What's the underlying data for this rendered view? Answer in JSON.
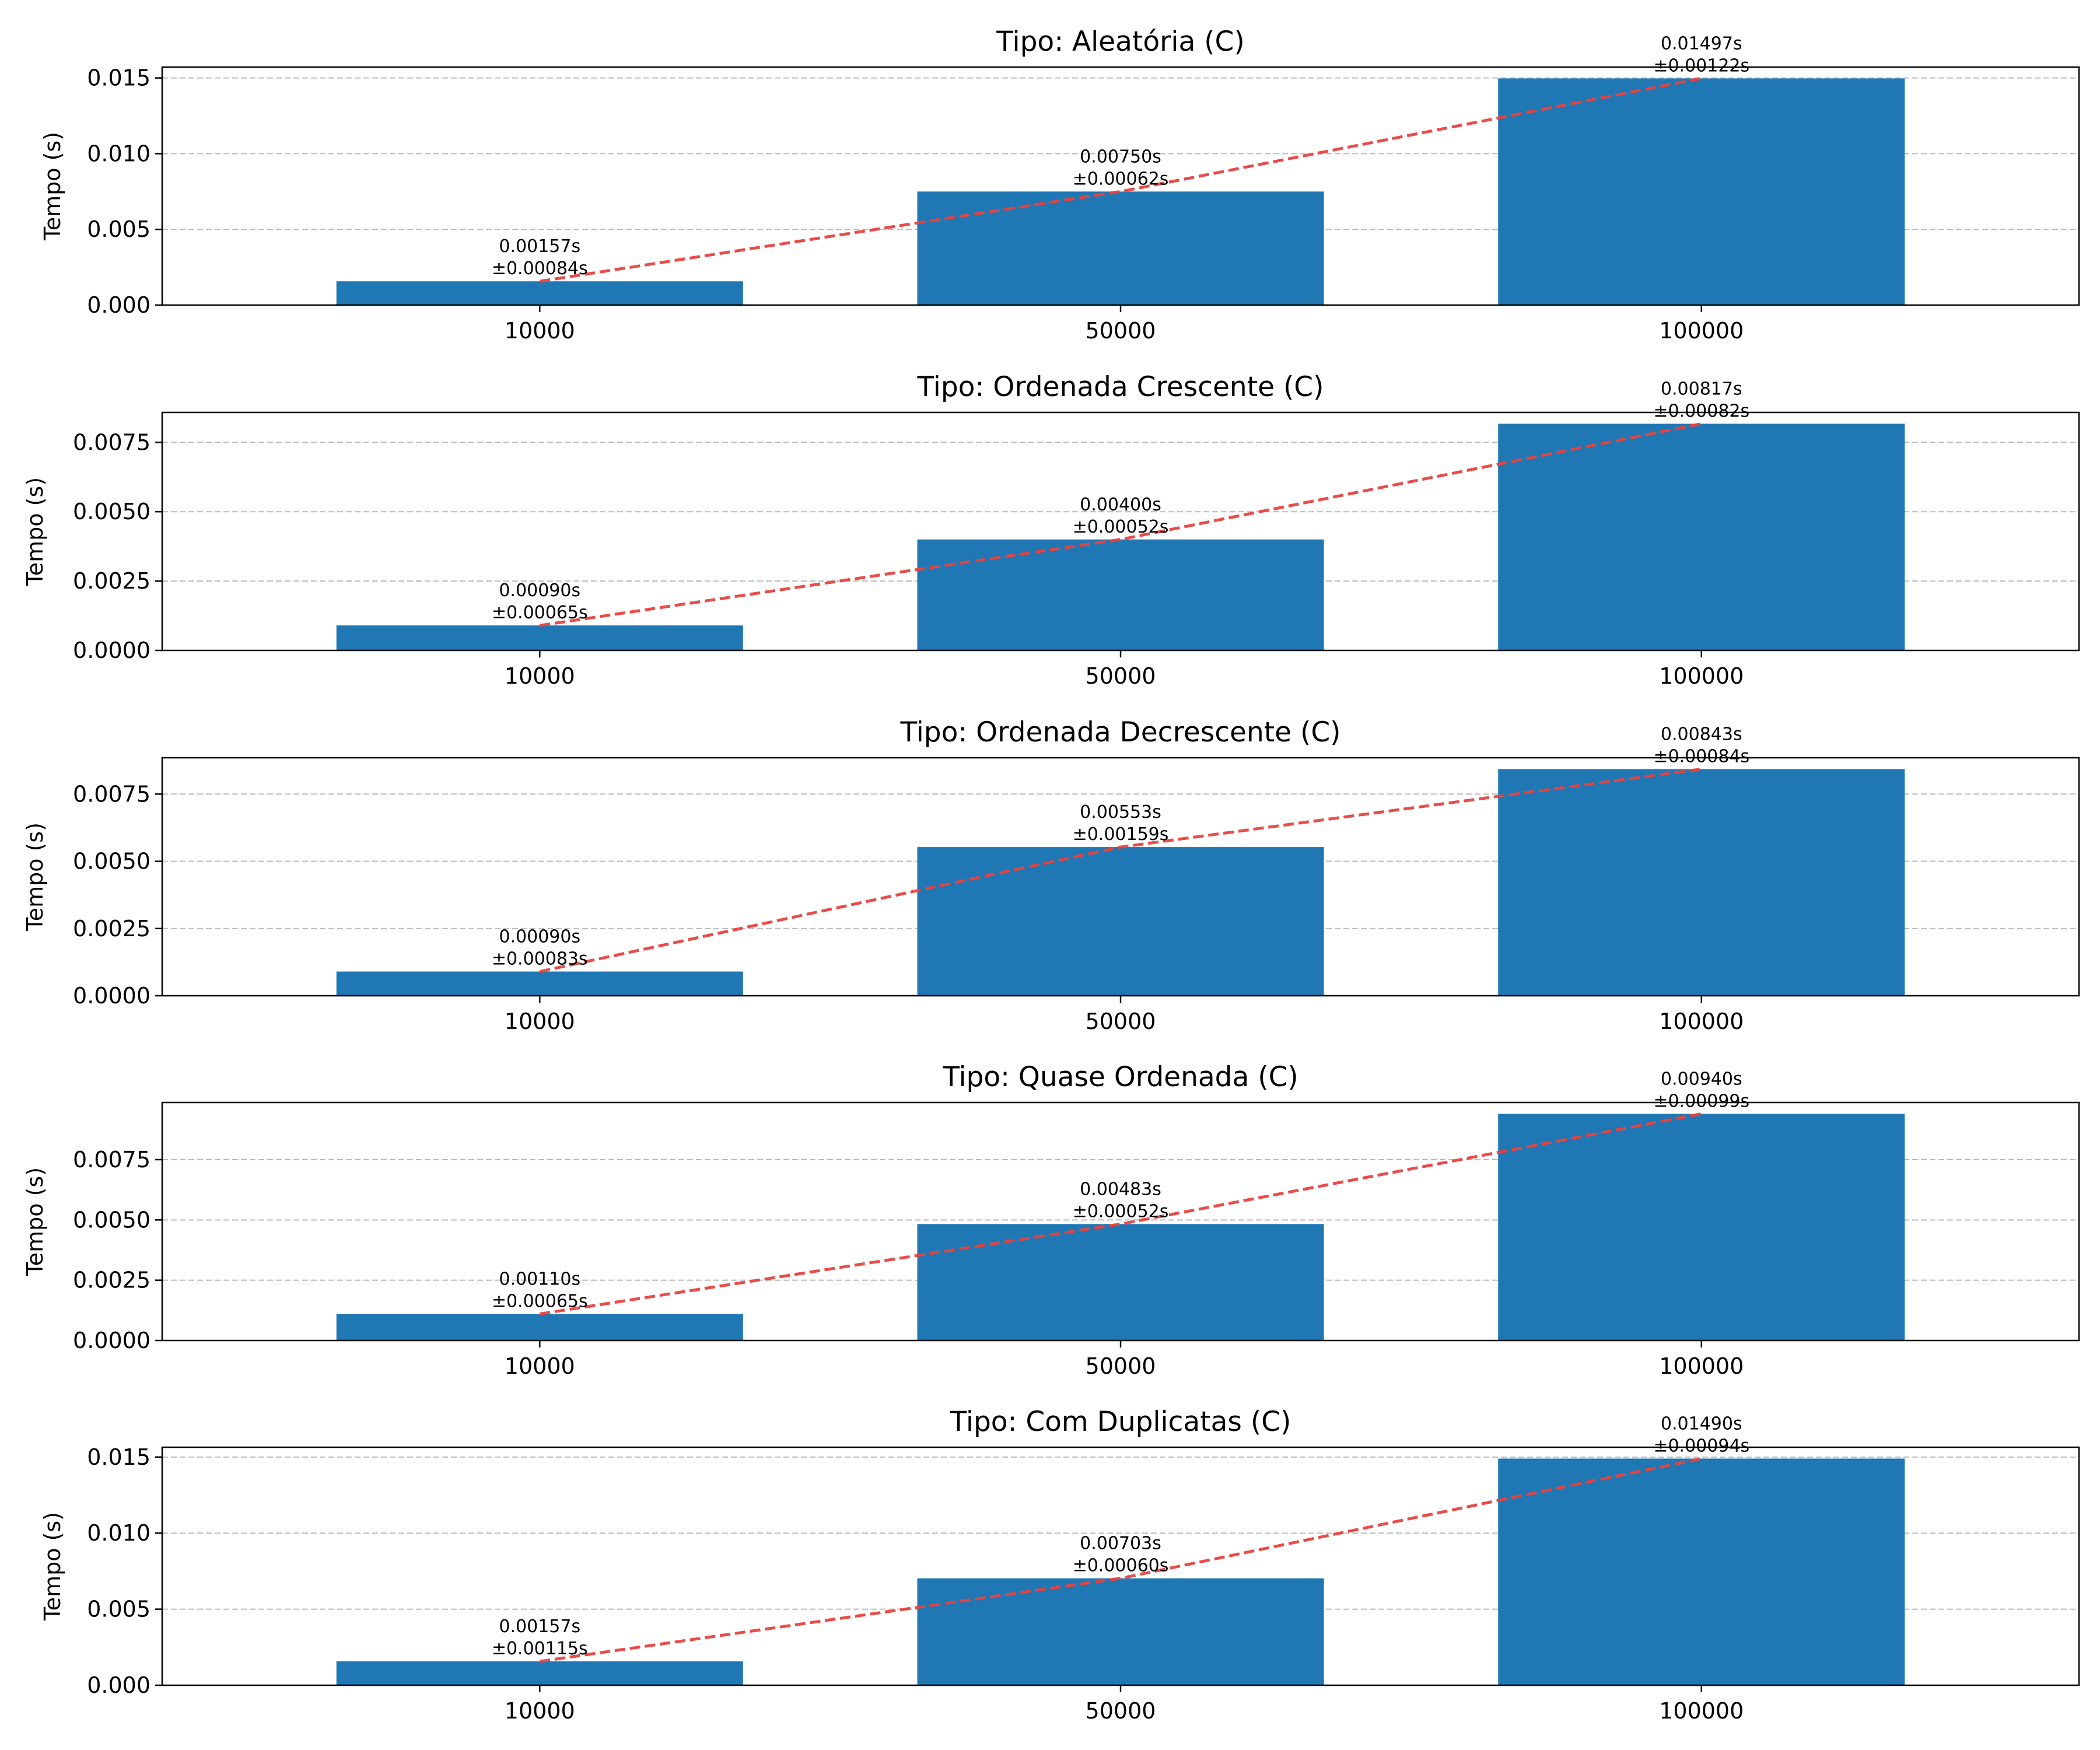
{
  "colors": {
    "bar": "#1f77b4",
    "trend": "#e8423f",
    "grid": "#b0b0b0",
    "axis": "#000000",
    "background": "#ffffff"
  },
  "chart_data": [
    {
      "type": "bar",
      "title": "Tipo: Aleatória (C)",
      "ylabel": "Tempo (s)",
      "xlabel": "",
      "categories": [
        "10000",
        "50000",
        "100000"
      ],
      "values": [
        0.00157,
        0.0075,
        0.01497
      ],
      "errors": [
        0.00084,
        0.00062,
        0.00122
      ],
      "value_labels": [
        "0.00157s",
        "0.00750s",
        "0.01497s"
      ],
      "error_labels": [
        "±0.00084s",
        "±0.00062s",
        "±0.00122s"
      ],
      "ylim": [
        0,
        0.0157185
      ],
      "yticks": [
        0.0,
        0.005,
        0.01,
        0.015
      ],
      "ytick_labels": [
        "0.000",
        "0.005",
        "0.010",
        "0.015"
      ],
      "grid": "y, dashed",
      "trend_line": "dashed red line through bar tops"
    },
    {
      "type": "bar",
      "title": "Tipo: Ordenada Crescente (C)",
      "ylabel": "Tempo (s)",
      "xlabel": "",
      "categories": [
        "10000",
        "50000",
        "100000"
      ],
      "values": [
        0.0009,
        0.004,
        0.00817
      ],
      "errors": [
        0.00065,
        0.00052,
        0.00082
      ],
      "value_labels": [
        "0.00090s",
        "0.00400s",
        "0.00817s"
      ],
      "error_labels": [
        "±0.00065s",
        "±0.00052s",
        "±0.00082s"
      ],
      "ylim": [
        0,
        0.0085785
      ],
      "yticks": [
        0.0,
        0.0025,
        0.005,
        0.0075
      ],
      "ytick_labels": [
        "0.0000",
        "0.0025",
        "0.0050",
        "0.0075"
      ],
      "grid": "y, dashed",
      "trend_line": "dashed red line through bar tops"
    },
    {
      "type": "bar",
      "title": "Tipo: Ordenada Decrescente (C)",
      "ylabel": "Tempo (s)",
      "xlabel": "",
      "categories": [
        "10000",
        "50000",
        "100000"
      ],
      "values": [
        0.0009,
        0.00553,
        0.00843
      ],
      "errors": [
        0.00083,
        0.00159,
        0.00084
      ],
      "value_labels": [
        "0.00090s",
        "0.00553s",
        "0.00843s"
      ],
      "error_labels": [
        "±0.00083s",
        "±0.00159s",
        "±0.00084s"
      ],
      "ylim": [
        0,
        0.0088515
      ],
      "yticks": [
        0.0,
        0.0025,
        0.005,
        0.0075
      ],
      "ytick_labels": [
        "0.0000",
        "0.0025",
        "0.0050",
        "0.0075"
      ],
      "grid": "y, dashed",
      "trend_line": "dashed red line through bar tops"
    },
    {
      "type": "bar",
      "title": "Tipo: Quase Ordenada (C)",
      "ylabel": "Tempo (s)",
      "xlabel": "",
      "categories": [
        "10000",
        "50000",
        "100000"
      ],
      "values": [
        0.0011,
        0.00483,
        0.0094
      ],
      "errors": [
        0.00065,
        0.00052,
        0.00099
      ],
      "value_labels": [
        "0.00110s",
        "0.00483s",
        "0.00940s"
      ],
      "error_labels": [
        "±0.00065s",
        "±0.00052s",
        "±0.00099s"
      ],
      "ylim": [
        0,
        0.00987
      ],
      "yticks": [
        0.0,
        0.0025,
        0.005,
        0.0075
      ],
      "ytick_labels": [
        "0.0000",
        "0.0025",
        "0.0050",
        "0.0075"
      ],
      "grid": "y, dashed",
      "trend_line": "dashed red line through bar tops"
    },
    {
      "type": "bar",
      "title": "Tipo: Com Duplicatas (C)",
      "ylabel": "Tempo (s)",
      "xlabel": "",
      "categories": [
        "10000",
        "50000",
        "100000"
      ],
      "values": [
        0.00157,
        0.00703,
        0.0149
      ],
      "errors": [
        0.00115,
        0.0006,
        0.00094
      ],
      "value_labels": [
        "0.00157s",
        "0.00703s",
        "0.01490s"
      ],
      "error_labels": [
        "±0.00115s",
        "±0.00060s",
        "±0.00094s"
      ],
      "ylim": [
        0,
        0.015645
      ],
      "yticks": [
        0.0,
        0.005,
        0.01,
        0.015
      ],
      "ytick_labels": [
        "0.000",
        "0.005",
        "0.010",
        "0.015"
      ],
      "grid": "y, dashed",
      "trend_line": "dashed red line through bar tops"
    }
  ]
}
